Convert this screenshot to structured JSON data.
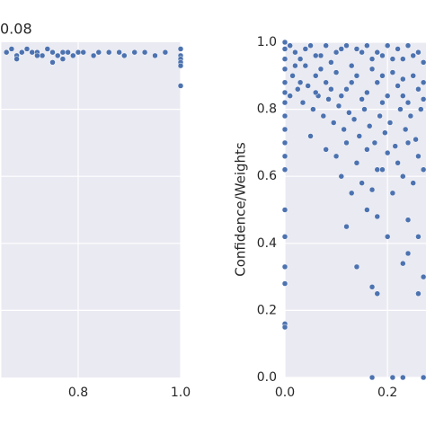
{
  "chart_data": [
    {
      "type": "scatter",
      "title": "0.08",
      "color": "#4c72b0",
      "xlim": [
        0.65,
        1.0
      ],
      "ylim": [
        0,
        1
      ],
      "xticks": [
        {
          "value": 0.8,
          "label": "0.8"
        },
        {
          "value": 1.0,
          "label": "1.0"
        }
      ],
      "yticks": [
        0.2,
        0.4,
        0.6,
        0.8
      ],
      "x": [
        0.66,
        0.67,
        0.68,
        0.69,
        0.7,
        0.71,
        0.72,
        0.73,
        0.74,
        0.75,
        0.76,
        0.77,
        0.78,
        0.79,
        0.8,
        0.81,
        0.83,
        0.84,
        0.86,
        0.88,
        0.89,
        0.91,
        0.93,
        0.95,
        0.97,
        0.68,
        0.72,
        0.75,
        0.77,
        1.0,
        1.0,
        1.0,
        1.0,
        1.0,
        1.0
      ],
      "y": [
        0.97,
        0.98,
        0.96,
        0.97,
        0.98,
        0.97,
        0.97,
        0.96,
        0.98,
        0.97,
        0.96,
        0.95,
        0.97,
        0.96,
        0.97,
        0.97,
        0.96,
        0.97,
        0.97,
        0.97,
        0.96,
        0.97,
        0.97,
        0.96,
        0.97,
        0.95,
        0.96,
        0.94,
        0.97,
        0.98,
        0.96,
        0.95,
        0.94,
        0.93,
        0.87
      ]
    },
    {
      "type": "scatter",
      "ylabel": "Confidence/Weights",
      "color": "#4c72b0",
      "xlim": [
        0,
        0.275
      ],
      "ylim": [
        0,
        1
      ],
      "xticks": [
        {
          "value": 0,
          "label": "0.0"
        },
        {
          "value": 0.2,
          "label": "0.2"
        }
      ],
      "yticks": [
        {
          "value": 0,
          "label": "0.0"
        },
        {
          "value": 0.2,
          "label": "0.2"
        },
        {
          "value": 0.4,
          "label": "0.4"
        },
        {
          "value": 0.6,
          "label": "0.6"
        },
        {
          "value": 0.8,
          "label": "0.8"
        },
        {
          "value": 1.0,
          "label": "1.0"
        }
      ],
      "x": [
        0,
        0,
        0,
        0,
        0,
        0,
        0,
        0,
        0,
        0,
        0,
        0,
        0,
        0,
        0,
        0,
        0,
        0,
        0.01,
        0.02,
        0.03,
        0.04,
        0.05,
        0.06,
        0.07,
        0.08,
        0.09,
        0.1,
        0.11,
        0.12,
        0.13,
        0.14,
        0.15,
        0.16,
        0.17,
        0.18,
        0.19,
        0.2,
        0.21,
        0.22,
        0.23,
        0.24,
        0.25,
        0.26,
        0.27,
        0.015,
        0.025,
        0.035,
        0.045,
        0.055,
        0.065,
        0.075,
        0.085,
        0.095,
        0.105,
        0.115,
        0.125,
        0.135,
        0.145,
        0.155,
        0.165,
        0.175,
        0.185,
        0.195,
        0.205,
        0.215,
        0.225,
        0.235,
        0.245,
        0.255,
        0.265,
        0.05,
        0.08,
        0.1,
        0.12,
        0.14,
        0.16,
        0.18,
        0.2,
        0.22,
        0.24,
        0.26,
        0.11,
        0.13,
        0.15,
        0.17,
        0.19,
        0.21,
        0.23,
        0.25,
        0.27,
        0.12,
        0.16,
        0.18,
        0.2,
        0.24,
        0.26,
        0.14,
        0.17,
        0.18,
        0.23,
        0.26,
        0.27,
        0.24,
        0.17,
        0.21,
        0.23,
        0.27,
        0.02,
        0.04,
        0.06,
        0.08,
        0.1,
        0.12,
        0.14,
        0.16,
        0.18,
        0.2,
        0.22,
        0.24,
        0.26,
        0.03,
        0.07,
        0.09,
        0.13,
        0.17,
        0.19,
        0.21,
        0.23,
        0.25,
        0.27,
        0.01,
        0.06,
        0.11,
        0.15,
        0.19,
        0.23,
        0.27
      ],
      "y": [
        1.0,
        0.98,
        0.95,
        0.92,
        0.88,
        0.85,
        0.82,
        0.78,
        0.74,
        0.7,
        0.66,
        0.62,
        0.5,
        0.42,
        0.33,
        0.28,
        0.16,
        0.15,
        0.99,
        0.97,
        0.95,
        0.93,
        0.99,
        0.9,
        0.96,
        0.88,
        0.94,
        0.91,
        0.98,
        0.86,
        0.93,
        0.9,
        0.97,
        0.85,
        0.92,
        0.88,
        0.96,
        0.84,
        0.91,
        0.87,
        0.95,
        0.82,
        0.9,
        0.86,
        0.94,
        0.9,
        0.86,
        0.82,
        0.87,
        0.8,
        0.84,
        0.78,
        0.83,
        0.76,
        0.81,
        0.74,
        0.79,
        0.77,
        0.72,
        0.8,
        0.75,
        0.7,
        0.78,
        0.73,
        0.76,
        0.69,
        0.8,
        0.74,
        0.78,
        0.71,
        0.8,
        0.72,
        0.68,
        0.66,
        0.7,
        0.64,
        0.68,
        0.62,
        0.67,
        0.64,
        0.7,
        0.66,
        0.6,
        0.55,
        0.58,
        0.56,
        0.62,
        0.55,
        0.6,
        0.58,
        0.62,
        0.45,
        0.5,
        0.48,
        0.42,
        0.47,
        0.42,
        0.33,
        0.27,
        0.25,
        0.34,
        0.25,
        0.3,
        0.37,
        0.0,
        0.0,
        0.0,
        0.0,
        0.93,
        0.98,
        0.96,
        0.99,
        0.97,
        0.99,
        0.98,
        0.99,
        0.97,
        0.99,
        0.98,
        0.99,
        0.97,
        0.88,
        0.92,
        0.86,
        0.88,
        0.95,
        0.9,
        0.95,
        0.89,
        0.96,
        0.88,
        0.84,
        0.85,
        0.84,
        0.83,
        0.82,
        0.84,
        0.83
      ]
    }
  ]
}
